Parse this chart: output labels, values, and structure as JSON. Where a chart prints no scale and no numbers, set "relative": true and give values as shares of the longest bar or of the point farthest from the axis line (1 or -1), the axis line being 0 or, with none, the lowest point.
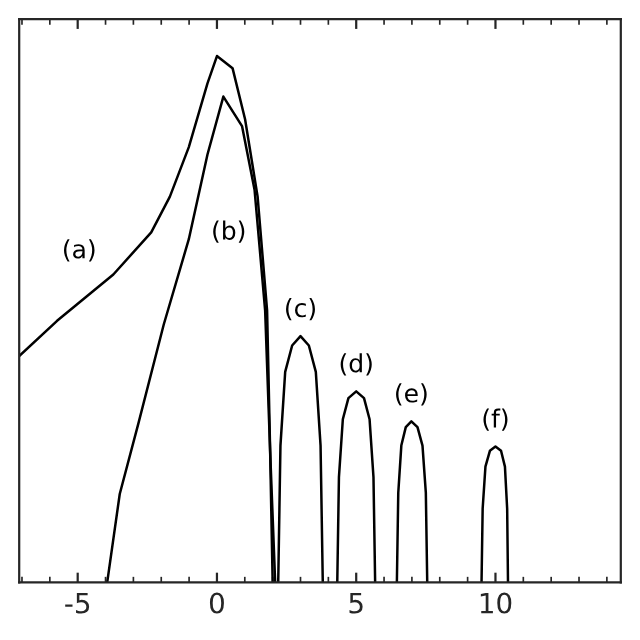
{
  "chart_data": {
    "type": "line",
    "relative": true,
    "xlim": [
      -7.1,
      14.5
    ],
    "xticks": [
      -5,
      0,
      5,
      10
    ],
    "tick_labels": "x",
    "grid": false,
    "legend": false,
    "series": [
      {
        "name": "(a)",
        "color": "#000000",
        "x": [
          -7.1,
          -5.74,
          -3.72,
          -2.36,
          -1.69,
          -1.01,
          -0.34,
          0,
          0.56,
          1.01,
          1.46,
          1.8,
          1.91,
          2.0
        ],
        "values": [
          0.43,
          0.497,
          0.585,
          0.665,
          0.733,
          0.827,
          0.948,
          1.0,
          0.977,
          0.88,
          0.733,
          0.517,
          0.249,
          0
        ]
      },
      {
        "name": "(b)",
        "color": "#000000",
        "x": [
          -3.94,
          -3.49,
          -2.82,
          -1.91,
          -1.01,
          -0.34,
          0.23,
          0.9,
          1.35,
          1.73,
          1.91,
          2.09
        ],
        "values": [
          0,
          0.168,
          0.302,
          0.49,
          0.652,
          0.813,
          0.923,
          0.867,
          0.746,
          0.517,
          0.249,
          0
        ]
      },
      {
        "name": "(c)",
        "color": "#000000",
        "x": [
          2.2,
          2.28,
          2.45,
          2.7,
          3.0,
          3.3,
          3.55,
          3.72,
          3.8
        ],
        "values": [
          0,
          0.26,
          0.4,
          0.45,
          0.468,
          0.45,
          0.4,
          0.26,
          0
        ]
      },
      {
        "name": "(d)",
        "color": "#000000",
        "x": [
          4.32,
          4.38,
          4.52,
          4.72,
          5.0,
          5.28,
          5.48,
          5.62,
          5.68
        ],
        "values": [
          0,
          0.2,
          0.31,
          0.35,
          0.363,
          0.35,
          0.31,
          0.2,
          0
        ]
      },
      {
        "name": "(e)",
        "color": "#000000",
        "x": [
          6.46,
          6.51,
          6.62,
          6.78,
          6.98,
          7.2,
          7.38,
          7.5,
          7.55
        ],
        "values": [
          0,
          0.17,
          0.26,
          0.295,
          0.306,
          0.295,
          0.26,
          0.17,
          0
        ]
      },
      {
        "name": "(f)",
        "color": "#000000",
        "x": [
          9.5,
          9.54,
          9.64,
          9.8,
          10.0,
          10.2,
          10.34,
          10.42,
          10.45
        ],
        "values": [
          0,
          0.14,
          0.22,
          0.25,
          0.258,
          0.25,
          0.22,
          0.14,
          0
        ]
      }
    ]
  }
}
